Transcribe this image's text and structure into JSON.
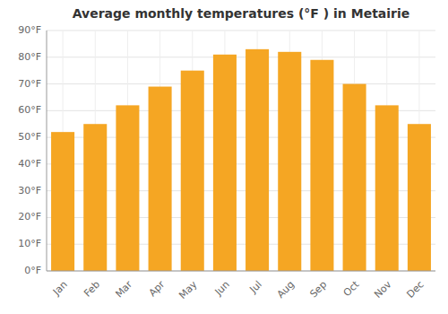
{
  "chart_data": {
    "type": "bar",
    "title": "Average monthly temperatures (°F ) in Metairie",
    "categories": [
      "Jan",
      "Feb",
      "Mar",
      "Apr",
      "May",
      "Jun",
      "Jul",
      "Aug",
      "Sep",
      "Oct",
      "Nov",
      "Dec"
    ],
    "values": [
      52,
      55,
      62,
      69,
      75,
      81,
      83,
      82,
      79,
      70,
      62,
      55
    ],
    "color": "#F5A623",
    "ylim": [
      0,
      90
    ],
    "yticks": [
      {
        "value": 0,
        "label": "0°F"
      },
      {
        "value": 10,
        "label": "10°F"
      },
      {
        "value": 20,
        "label": "20°F"
      },
      {
        "value": 30,
        "label": "30°F"
      },
      {
        "value": 40,
        "label": "40°F"
      },
      {
        "value": 50,
        "label": "50°F"
      },
      {
        "value": 60,
        "label": "60°F"
      },
      {
        "value": 70,
        "label": "70°F"
      },
      {
        "value": 80,
        "label": "80°F"
      },
      {
        "value": 90,
        "label": "90°F"
      }
    ],
    "grid": true
  }
}
